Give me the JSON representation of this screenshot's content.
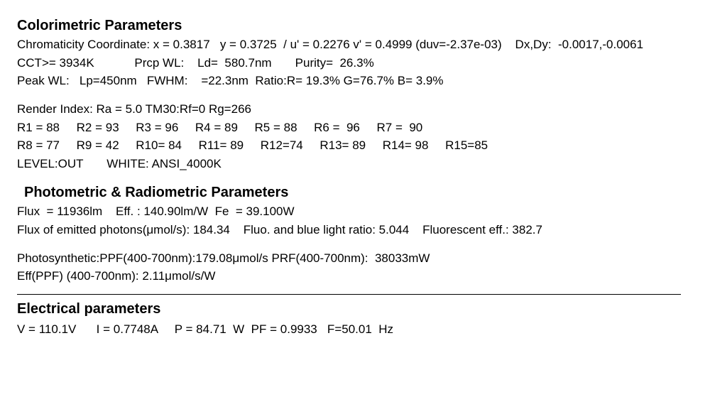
{
  "colorimetric": {
    "heading": "Colorimetric Parameters",
    "line1": "Chromaticity Coordinate: x = 0.3817   y = 0.3725  / u' = 0.2276 v' = 0.4999 (duv=-2.37e-03)    Dx,Dy:  -0.0017,-0.0061",
    "line2": "CCT>= 3934K            Prcp WL:    Ld=  580.7nm       Purity=  26.3%",
    "line3": "Peak WL:   Lp=450nm   FWHM:    =22.3nm  Ratio:R= 19.3% G=76.7% B= 3.9%",
    "line4": "Render Index: Ra = 5.0 TM30:Rf=0 Rg=266",
    "line5": "R1 = 88     R2 = 93     R3 = 96     R4 = 89     R5 = 88     R6 =  96     R7 =  90",
    "line6": "R8 = 77     R9 = 42     R10= 84     R11= 89     R12=74     R13= 89     R14= 98     R15=85",
    "line7": "LEVEL:OUT       WHITE: ANSI_4000K"
  },
  "photometric": {
    "heading": "Photometric & Radiometric Parameters",
    "line1": "Flux  = 11936lm    Eff. : 140.90lm/W  Fe  = 39.100W",
    "line2": "Flux of emitted photons(μmol/s): 184.34    Fluo. and blue light ratio: 5.044    Fluorescent eff.: 382.7",
    "line3": "Photosynthetic:PPF(400-700nm):179.08μmol/s PRF(400-700nm):  38033mW",
    "line4": "Eff(PPF) (400-700nm): 2.11μmol/s/W"
  },
  "electrical": {
    "heading": "Electrical parameters",
    "line1": "V = 110.1V      I = 0.7748A     P = 84.71  W  PF = 0.9933   F=50.01  Hz"
  }
}
